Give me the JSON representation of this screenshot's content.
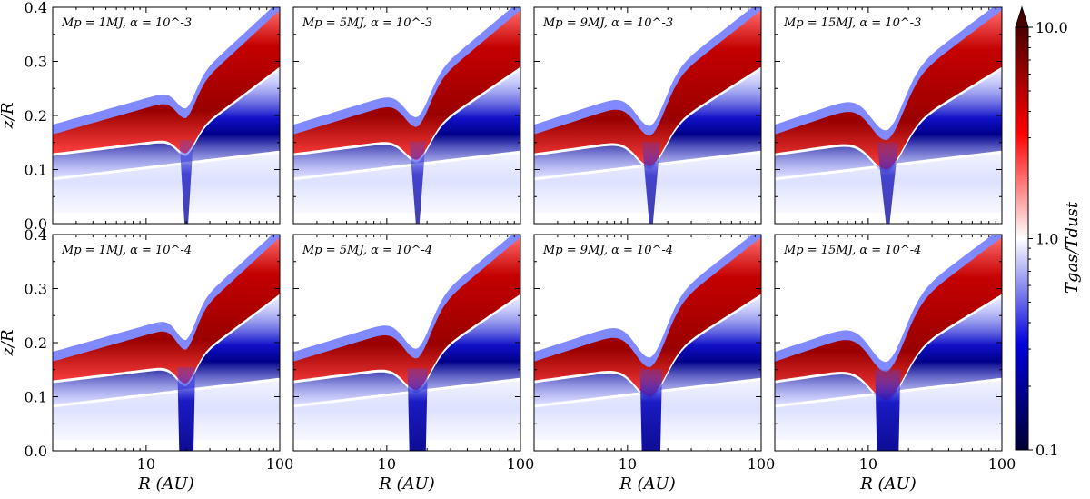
{
  "chart_data": {
    "type": "heatmap",
    "grid": {
      "rows": 2,
      "cols": 4
    },
    "panels": [
      {
        "label": "Mp = 1MJ, α = 10^-3",
        "mp": 1,
        "alpha_exp": -3,
        "gap_center_au": 20,
        "gap_width": 0.1,
        "gap_depth_zr": 0.05
      },
      {
        "label": "Mp = 5MJ, α = 10^-3",
        "mp": 5,
        "alpha_exp": -3,
        "gap_center_au": 17,
        "gap_width": 0.13,
        "gap_depth_zr": 0.07
      },
      {
        "label": "Mp = 9MJ, α = 10^-3",
        "mp": 9,
        "alpha_exp": -3,
        "gap_center_au": 15,
        "gap_width": 0.15,
        "gap_depth_zr": 0.09
      },
      {
        "label": "Mp = 15MJ, α = 10^-3",
        "mp": 15,
        "alpha_exp": -3,
        "gap_center_au": 14,
        "gap_width": 0.17,
        "gap_depth_zr": 0.1
      },
      {
        "label": "Mp = 1MJ, α = 10^-4",
        "mp": 1,
        "alpha_exp": -4,
        "gap_center_au": 20,
        "gap_width": 0.1,
        "gap_depth_zr": 0.06
      },
      {
        "label": "Mp = 5MJ, α = 10^-4",
        "mp": 5,
        "alpha_exp": -4,
        "gap_center_au": 17,
        "gap_width": 0.14,
        "gap_depth_zr": 0.08
      },
      {
        "label": "Mp = 9MJ, α = 10^-4",
        "mp": 9,
        "alpha_exp": -4,
        "gap_center_au": 15,
        "gap_width": 0.16,
        "gap_depth_zr": 0.1
      },
      {
        "label": "Mp = 15MJ, α = 10^-4",
        "mp": 15,
        "alpha_exp": -4,
        "gap_center_au": 14,
        "gap_width": 0.18,
        "gap_depth_zr": 0.11
      }
    ],
    "x": {
      "label": "R (AU)",
      "scale": "log",
      "range": [
        2,
        100
      ],
      "ticks": [
        10,
        100
      ],
      "tick_labels": [
        "10",
        "100"
      ]
    },
    "y": {
      "label": "z/R",
      "range": [
        0.0,
        0.4
      ],
      "ticks": [
        0.0,
        0.1,
        0.2,
        0.3,
        0.4
      ],
      "tick_labels": [
        "0.0",
        "0.1",
        "0.2",
        "0.3",
        "0.4"
      ]
    },
    "colorbar": {
      "label": "Tgas/Tdust",
      "scale": "log",
      "range": [
        0.1,
        10.0
      ],
      "ticks": [
        0.1,
        1.0,
        10.0
      ],
      "tick_labels": [
        "0.1",
        "1.0",
        "10.0"
      ],
      "colormap": "seismic",
      "extend": "max"
    }
  },
  "colors": {
    "red": "#b00000",
    "blue": "#0000c8",
    "white": "#ffffff",
    "dark_red": "#4a0000",
    "dark_blue": "#000033"
  }
}
